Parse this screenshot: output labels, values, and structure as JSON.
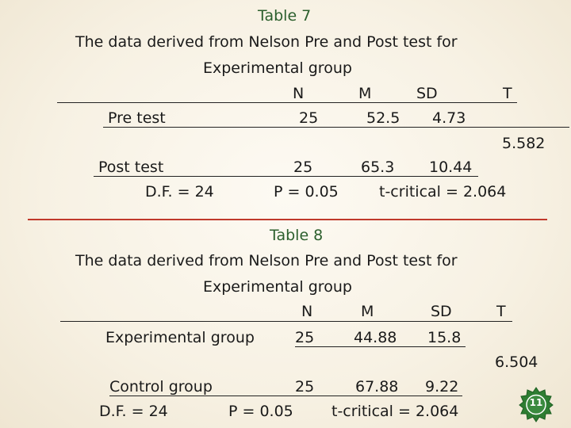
{
  "table7": {
    "title": "Table 7",
    "subtitle_line1": "The data derived from Nelson Pre and Post test for",
    "subtitle_line2": "Experimental group",
    "headers": {
      "n": "N",
      "m": "M",
      "sd": "SD",
      "t": "T"
    },
    "rows": [
      {
        "label": "Pre test",
        "n": "25",
        "m": "52.5",
        "sd": "4.73"
      },
      {
        "label": "Post test",
        "n": "25",
        "m": "65.3",
        "sd": "10.44"
      }
    ],
    "t_value": "5.582",
    "footer": {
      "df": "D.F. = 24",
      "p": "P = 0.05",
      "tcrit": "t-critical = 2.064"
    }
  },
  "table8": {
    "title": "Table 8",
    "subtitle_line1": "The data derived from Nelson Pre and Post test for",
    "subtitle_line2": "Experimental group",
    "headers": {
      "n": "N",
      "m": "M",
      "sd": "SD",
      "t": "T"
    },
    "rows": [
      {
        "label": "Experimental group",
        "n": "25",
        "m": "44.88",
        "sd": "15.8"
      },
      {
        "label": "Control group",
        "n": "25",
        "m": "67.88",
        "sd": "9.22"
      }
    ],
    "t_value": "6.504",
    "footer": {
      "df": "D.F. = 24",
      "p": "P = 0.05",
      "tcrit": "t-critical = 2.064"
    }
  },
  "page_number": "11",
  "colors": {
    "title": "#2c5f2d",
    "separator": "#c0392b",
    "badge": "#2e7d32"
  }
}
